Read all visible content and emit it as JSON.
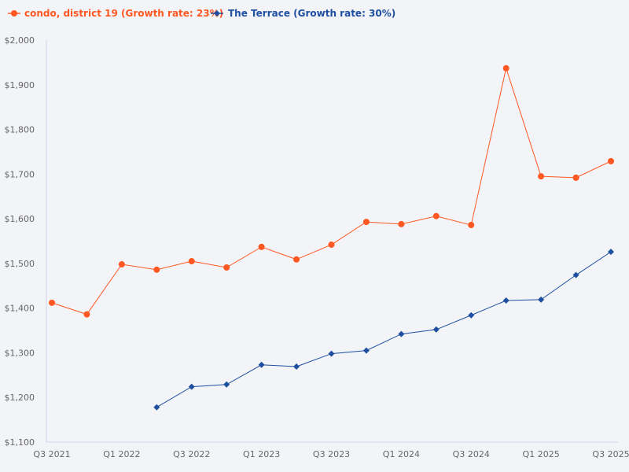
{
  "chart_data": {
    "type": "line",
    "title": "",
    "xlabel": "",
    "ylabel": "",
    "legend_position": "top-left",
    "grid": false,
    "ylim": [
      1100,
      2000
    ],
    "yticks": [
      "$1,100",
      "$1,200",
      "$1,300",
      "$1,400",
      "$1,500",
      "$1,600",
      "$1,700",
      "$1,800",
      "$1,900",
      "$2,000"
    ],
    "ytick_values": [
      1100,
      1200,
      1300,
      1400,
      1500,
      1600,
      1700,
      1800,
      1900,
      2000
    ],
    "x": [
      "Q3 2021",
      "Q4 2021",
      "Q1 2022",
      "Q2 2022",
      "Q3 2022",
      "Q4 2022",
      "Q1 2023",
      "Q2 2023",
      "Q3 2023",
      "Q4 2023",
      "Q1 2024",
      "Q2 2024",
      "Q3 2024",
      "Q4 2024",
      "Q1 2025",
      "Q2 2025",
      "Q3 2025"
    ],
    "xtick_labels": [
      "Q3 2021",
      "Q1 2022",
      "Q3 2022",
      "Q1 2023",
      "Q3 2023",
      "Q1 2024",
      "Q3 2024",
      "Q1 2025",
      "Q3 2025"
    ],
    "series": [
      {
        "name": "condo, district 19 (Growth rate: 23%)",
        "color": "#ff5722",
        "marker": "circle",
        "values": [
          1412,
          1386,
          1498,
          1486,
          1505,
          1491,
          1537,
          1509,
          1542,
          1593,
          1588,
          1606,
          1586,
          1937,
          1695,
          1692,
          1729
        ]
      },
      {
        "name": "The Terrace (Growth rate: 30%)",
        "color": "#1e4fa0",
        "marker": "diamond",
        "values": [
          null,
          null,
          null,
          1178,
          1224,
          1229,
          1273,
          1269,
          1298,
          1305,
          1342,
          1352,
          1384,
          1417,
          1419,
          1474,
          1526
        ]
      }
    ]
  }
}
